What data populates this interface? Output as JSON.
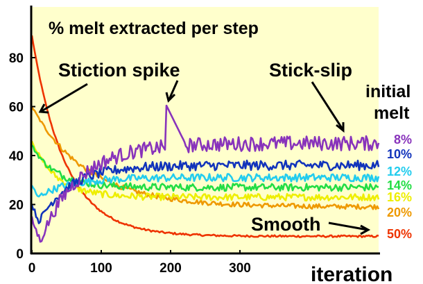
{
  "chart_data": {
    "type": "line",
    "title": "% melt extracted per step",
    "xlabel": "iteration",
    "ylabel": "",
    "xlim": [
      0,
      500
    ],
    "ylim": [
      0,
      95
    ],
    "x_ticks": [
      0,
      100,
      200,
      300
    ],
    "y_ticks": [
      0,
      20,
      40,
      60,
      80
    ],
    "plot_background": "#ffffcc",
    "legend_title_line1": "initial",
    "legend_title_line2": "melt",
    "series": [
      {
        "name": "8%",
        "color": "#8833bb",
        "start": 14,
        "dip_value": 5,
        "dip_at": 12,
        "plateau": 45,
        "noise": 3.0,
        "spike_at": 193,
        "spike_value": 61
      },
      {
        "name": "10%",
        "color": "#1133bb",
        "start": 20,
        "dip_value": 13,
        "dip_at": 10,
        "plateau": 36,
        "noise": 2.0
      },
      {
        "name": "12%",
        "color": "#22ccee",
        "start": 28,
        "dip_value": 23,
        "dip_at": 8,
        "plateau": 31,
        "noise": 1.6
      },
      {
        "name": "14%",
        "color": "#22dd44",
        "start": 44,
        "plateau": 27,
        "noise": 1.5
      },
      {
        "name": "16%",
        "color": "#eeee00",
        "start": 46,
        "plateau": 23,
        "noise": 1.4
      },
      {
        "name": "20%",
        "color": "#ee9900",
        "start": 60,
        "plateau": 19,
        "noise": 1.0,
        "decay": 80
      },
      {
        "name": "50%",
        "color": "#ee3300",
        "start": 89,
        "plateau": 7,
        "noise": 0.4,
        "decay": 48
      }
    ],
    "annotations": {
      "stiction": "Stiction spike",
      "stickslip": "Stick-slip",
      "smooth": "Smooth"
    }
  }
}
